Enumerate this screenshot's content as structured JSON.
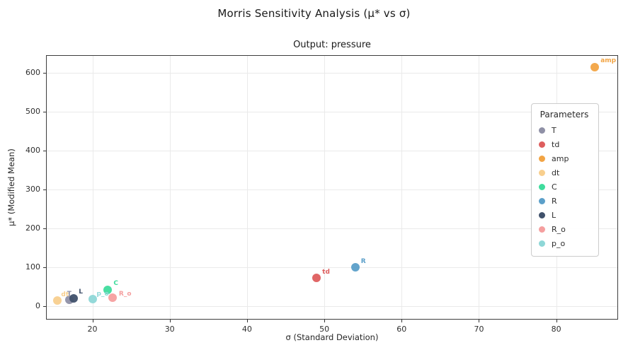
{
  "chart_data": {
    "type": "scatter",
    "title": "Morris Sensitivity Analysis (μ* vs σ)",
    "subtitle": "Output: pressure",
    "xlabel": "σ (Standard Deviation)",
    "ylabel": "μ* (Modified Mean)",
    "xlim": [
      14,
      88
    ],
    "ylim": [
      -35,
      645
    ],
    "xticks": [
      20,
      30,
      40,
      50,
      60,
      70,
      80
    ],
    "yticks": [
      0,
      100,
      200,
      300,
      400,
      500,
      600
    ],
    "grid": true,
    "legend_title": "Parameters",
    "legend_position": "right-inside",
    "series": [
      {
        "name": "T",
        "x": 17.0,
        "y": 16,
        "color": "#8f90a6",
        "label_dx": -3,
        "label_dy": -13
      },
      {
        "name": "td",
        "x": 49.0,
        "y": 73,
        "color": "#de5e5e",
        "label_dx": 8,
        "label_dy": -13
      },
      {
        "name": "amp",
        "x": 85.0,
        "y": 614,
        "color": "#f2a444",
        "label_dx": 8,
        "label_dy": -14
      },
      {
        "name": "dt",
        "x": 15.5,
        "y": 14,
        "color": "#f8cf8e",
        "label_dx": 5,
        "label_dy": -13
      },
      {
        "name": "C",
        "x": 22.0,
        "y": 42,
        "color": "#3fdc9d",
        "label_dx": 8,
        "label_dy": -14
      },
      {
        "name": "R",
        "x": 54.0,
        "y": 100,
        "color": "#5b9fc9",
        "label_dx": 8,
        "label_dy": -13
      },
      {
        "name": "L",
        "x": 17.6,
        "y": 19,
        "color": "#40516b",
        "label_dx": 7,
        "label_dy": -14
      },
      {
        "name": "R_o",
        "x": 22.6,
        "y": 22,
        "color": "#f59f9f",
        "label_dx": 9,
        "label_dy": -10
      },
      {
        "name": "p_o",
        "x": 20.0,
        "y": 17,
        "color": "#8ed7d7",
        "label_dx": 6,
        "label_dy": -12
      }
    ]
  }
}
